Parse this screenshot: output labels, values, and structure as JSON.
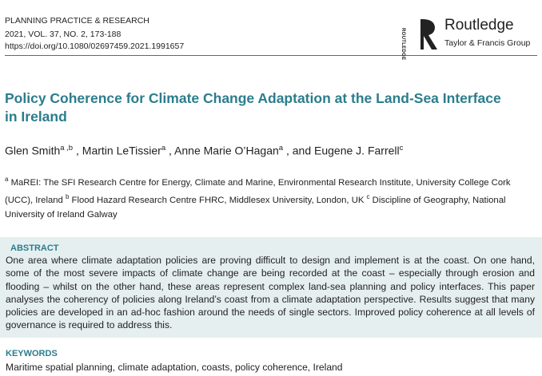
{
  "header": {
    "journal": "PLANNING PRACTICE & RESEARCH",
    "citation": "2021, VOL. 37, NO. 2, 173-188",
    "doi": "https://doi.org/10.1080/02697459.2021.1991657"
  },
  "publisher": {
    "logo_text": "ROUTLEDGE",
    "name": "Routledge",
    "group": "Taylor & Francis Group"
  },
  "title": "Policy Coherence for Climate Change Adaptation at the Land-Sea Interface in Ireland",
  "authors": [
    {
      "name": "Glen Smith",
      "sup": "a ,b"
    },
    {
      "prefix": " , ",
      "name": "Martin LeTissier",
      "sup": "a"
    },
    {
      "prefix": " , ",
      "name": "Anne Marie O’Hagan",
      "sup": "a"
    },
    {
      "prefix": " , and ",
      "name": "Eugene J. Farrell",
      "sup": "c"
    }
  ],
  "affiliations": [
    {
      "sup": "a",
      "text": " MaREI: The SFI Research Centre for Energy, Climate and Marine, Environmental Research Institute, University College Cork (UCC), Ireland "
    },
    {
      "sup": "b",
      "text": " Flood Hazard Research Centre FHRC, Middlesex University, London, UK "
    },
    {
      "sup": "c",
      "text": " Discipline of Geography, National University of Ireland Galway"
    }
  ],
  "abstract": {
    "heading": "ABSTRACT",
    "text": "One area where climate adaptation policies are proving difficult to design and implement is at the coast. On one hand, some of the most severe impacts of climate change are being recorded at the coast – especially through erosion and flooding – whilst on the other hand, these areas represent complex land-sea planning and policy interfaces. This paper analyses the coherency of policies along Ireland’s coast from a climate adaptation perspective. Results suggest that many policies are developed in an ad-hoc fashion around the needs of single sectors. Improved policy coherence at all levels of governance is required to address this."
  },
  "keywords": {
    "heading": "KEYWORDS",
    "text": "Maritime spatial planning, climate adaptation, coasts, policy coherence, Ireland"
  }
}
